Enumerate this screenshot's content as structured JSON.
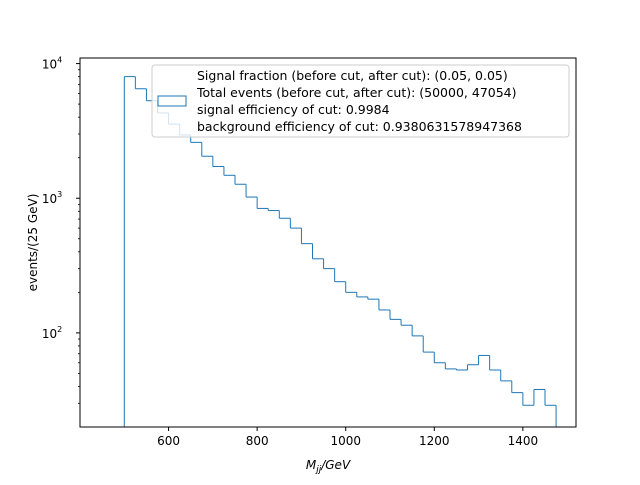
{
  "chart_data": {
    "type": "histogram",
    "title": "",
    "xlabel_main": "M",
    "xlabel_sub": "jj",
    "xlabel_unit": "/GeV",
    "ylabel": "events/(25 GeV)",
    "xlim": [
      400,
      1520
    ],
    "ylim": [
      20,
      11000
    ],
    "yscale": "log",
    "grid": false,
    "legend_location": "top-right",
    "x_ticks": [
      600,
      800,
      1000,
      1200,
      1400
    ],
    "y_ticks": [
      {
        "value": 100,
        "base": "10",
        "exp": "2"
      },
      {
        "value": 1000,
        "base": "10",
        "exp": "3"
      },
      {
        "value": 10000,
        "base": "10",
        "exp": "4"
      }
    ],
    "bin_edges": [
      500,
      525,
      550,
      575,
      600,
      625,
      650,
      675,
      700,
      725,
      750,
      775,
      800,
      825,
      850,
      875,
      900,
      925,
      950,
      975,
      1000,
      1025,
      1050,
      1075,
      1100,
      1125,
      1150,
      1175,
      1200,
      1225,
      1250,
      1275,
      1300,
      1325,
      1350,
      1375,
      1400,
      1425,
      1450,
      1475
    ],
    "counts": [
      8000,
      6500,
      5300,
      4300,
      3550,
      2950,
      2600,
      2050,
      1720,
      1480,
      1270,
      1020,
      840,
      810,
      710,
      600,
      460,
      355,
      300,
      240,
      200,
      185,
      178,
      148,
      126,
      114,
      95,
      72,
      60,
      54,
      53,
      58,
      68,
      53,
      44,
      36,
      29,
      38,
      29
    ],
    "series_color": "#1f77b4",
    "legend": [
      "Signal fraction (before cut, after cut): (0.05, 0.05)",
      " Total events (before cut, after cut): (50000, 47054)",
      " signal efficiency of cut: 0.9984",
      " background efficiency of cut: 0.9380631578947368"
    ]
  }
}
